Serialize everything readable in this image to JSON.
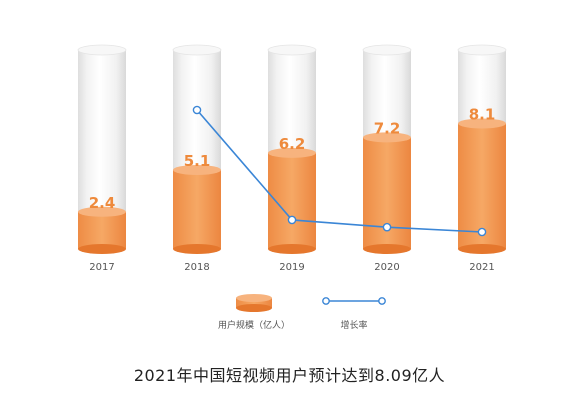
{
  "caption": "2021年中国短视频用户预计达到8.09亿人",
  "colors": {
    "bar": "#f0914a",
    "bar_light": "#f7b37e",
    "bar_dark": "#e5772d",
    "line": "#3b86d6",
    "label": "#ee8a3c"
  },
  "chart_data": {
    "type": "bar",
    "categories": [
      "2017",
      "2018",
      "2019",
      "2020",
      "2021"
    ],
    "series": [
      {
        "name": "用户规模（亿人）",
        "type": "bar",
        "values": [
          2.4,
          5.1,
          6.2,
          7.2,
          8.1
        ],
        "labels": [
          "2.4",
          "5.1",
          "6.2",
          "7.2",
          "8.1"
        ]
      },
      {
        "name": "增长率",
        "type": "line",
        "values": [
          null,
          1.13,
          0.22,
          0.16,
          0.12
        ]
      }
    ],
    "legend": [
      "用户规模（亿人）",
      "增长率"
    ],
    "legend_position": "bottom"
  }
}
